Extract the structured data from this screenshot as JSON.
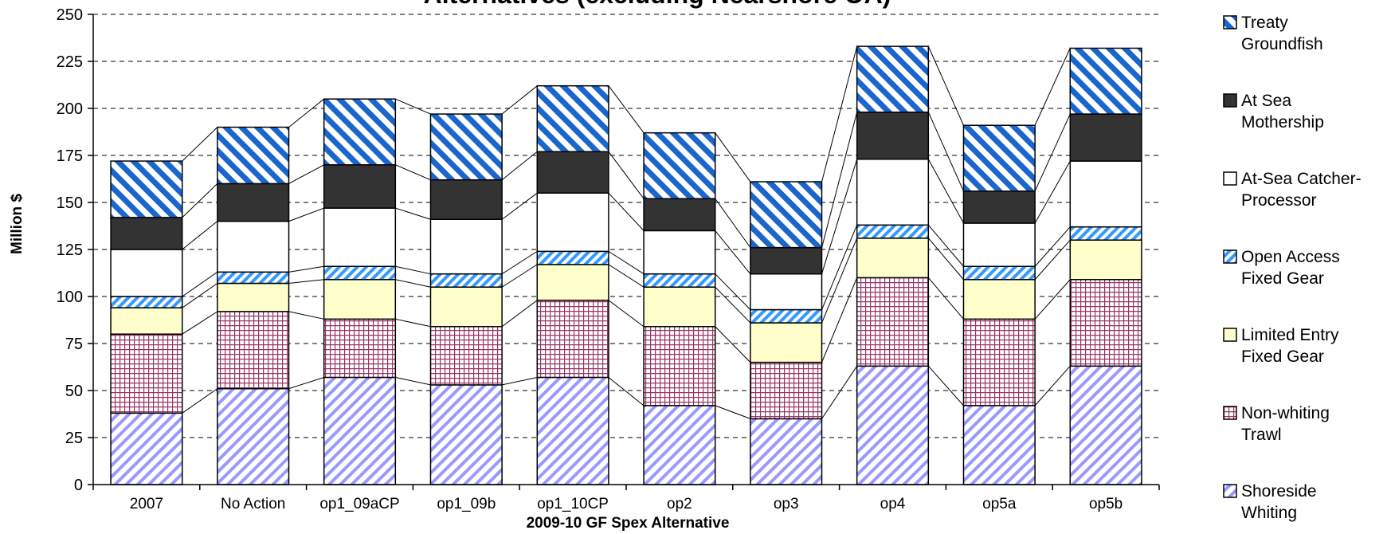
{
  "chart_data": {
    "type": "bar",
    "stacked": true,
    "title": "Alternatives (excluding Nearshore OA)",
    "xlabel": "2009-10 GF Spex Alternative",
    "ylabel": "Million $",
    "ylim": [
      0,
      250
    ],
    "yticks": [
      0,
      25,
      50,
      75,
      100,
      125,
      150,
      175,
      200,
      225,
      250
    ],
    "grid": "horizontal dashed",
    "legend_position": "right",
    "series_lines": true,
    "categories": [
      "2007",
      "No Action",
      "op1_09aCP",
      "op1_09b",
      "op1_10CP",
      "op2",
      "op3",
      "op4",
      "op5a",
      "op5b"
    ],
    "series": [
      {
        "name": "Shoreside Whiting",
        "pattern": "diag-hatch-lavender",
        "color": "#9999ff",
        "values": [
          38,
          51,
          57,
          53,
          57,
          42,
          35,
          63,
          42,
          63
        ]
      },
      {
        "name": "Non-whiting Trawl",
        "pattern": "grid-maroon",
        "color": "#993366",
        "values": [
          42,
          41,
          31,
          31,
          41,
          42,
          30,
          47,
          46,
          46
        ]
      },
      {
        "name": "Limited Entry Fixed Gear",
        "pattern": "solid-cream",
        "color": "#ffffcc",
        "values": [
          14,
          15,
          21,
          21,
          19,
          21,
          21,
          21,
          21,
          21
        ]
      },
      {
        "name": "Open Access Fixed Gear",
        "pattern": "diag-hatch-blue",
        "color": "#3399ff",
        "values": [
          6,
          6,
          7,
          7,
          7,
          7,
          7,
          7,
          7,
          7
        ]
      },
      {
        "name": "At-Sea Catcher-Processor",
        "pattern": "solid-white",
        "color": "#ffffff",
        "values": [
          25,
          27,
          31,
          29,
          31,
          23,
          19,
          35,
          23,
          35
        ]
      },
      {
        "name": "At Sea Mothership",
        "pattern": "solid-dark",
        "color": "#333333",
        "values": [
          17,
          20,
          23,
          21,
          22,
          17,
          14,
          25,
          17,
          25
        ]
      },
      {
        "name": "Treaty Groundfish",
        "pattern": "diag-hatch-bold-blue",
        "color": "#1a66cc",
        "values": [
          30,
          30,
          35,
          35,
          35,
          35,
          35,
          35,
          35,
          35
        ]
      }
    ]
  }
}
